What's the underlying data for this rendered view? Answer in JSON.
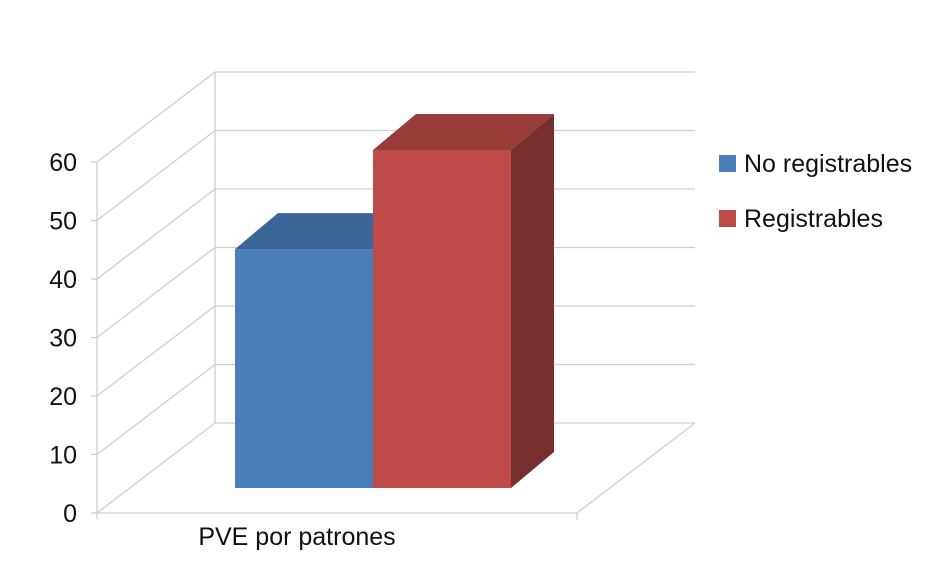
{
  "chart_data": {
    "type": "bar",
    "style": "3d-clustered-column",
    "categories": [
      "PVE por patrones"
    ],
    "series": [
      {
        "name": "No registrables",
        "values": [
          41
        ],
        "color": "#4a7ebb"
      },
      {
        "name": "Registrables",
        "values": [
          58
        ],
        "color": "#be4b48"
      }
    ],
    "ylim": [
      0,
      60
    ],
    "yticks": [
      0,
      10,
      20,
      30,
      40,
      50,
      60
    ],
    "grid": true,
    "legend": "right",
    "title": "",
    "xlabel": "",
    "ylabel": ""
  }
}
